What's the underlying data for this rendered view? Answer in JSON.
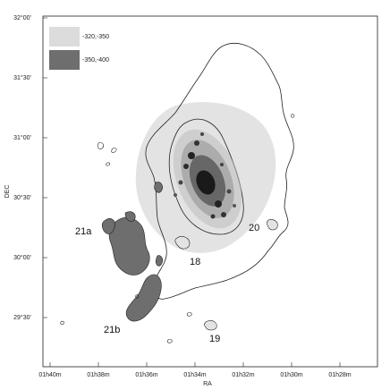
{
  "map": {
    "legend": [
      {
        "label": "-320,-350",
        "color": "#dcdcdc"
      },
      {
        "label": "-350,-400",
        "color": "#6e6e6e"
      }
    ],
    "x_axis": {
      "title": "RA",
      "ticks": [
        "01h40m",
        "01h38m",
        "01h36m",
        "01h34m",
        "01h32m",
        "01h30m",
        "01h28m"
      ]
    },
    "y_axis": {
      "title": "DEC",
      "ticks": [
        "32°00'",
        "31°30'",
        "31°00'",
        "30°30'",
        "30°00'",
        "29°30'"
      ]
    },
    "region_labels": [
      "21a",
      "21b",
      "18",
      "19",
      "20"
    ],
    "colors": {
      "frame": "#222222",
      "contour": "#222222",
      "light_fill": "#dcdcdc",
      "dark_fill": "#6e6e6e",
      "galaxy_core": "#1a1a1a"
    }
  }
}
